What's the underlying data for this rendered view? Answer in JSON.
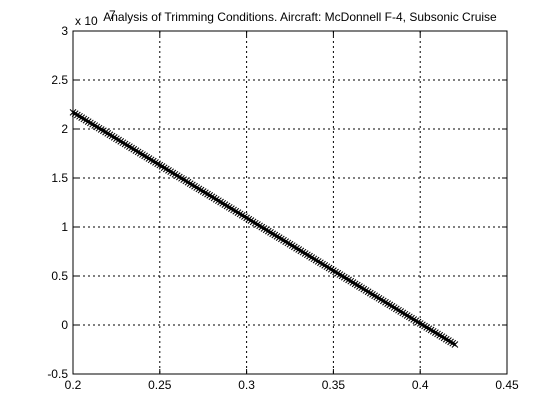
{
  "chart_data": {
    "type": "line",
    "title": "Analysis of Trimming Conditions. Aircraft: McDonnell F-4, Subsonic Cruise",
    "xlabel": "",
    "ylabel": "",
    "y_multiplier_label": "x 10",
    "y_multiplier_exponent": "7",
    "xlim": [
      0.2,
      0.45
    ],
    "ylim": [
      -0.5,
      3
    ],
    "x_ticks": [
      "0.2",
      "0.25",
      "0.3",
      "0.35",
      "0.4",
      "0.45"
    ],
    "y_ticks": [
      "-0.5",
      "0",
      "0.5",
      "1",
      "1.5",
      "2",
      "2.5",
      "3"
    ],
    "grid": true,
    "series": [
      {
        "x": [
          0.2,
          0.21,
          0.22,
          0.23,
          0.24,
          0.25,
          0.26,
          0.27,
          0.28,
          0.29,
          0.3,
          0.31,
          0.32,
          0.33,
          0.34,
          0.35,
          0.36,
          0.37,
          0.38,
          0.39,
          0.4,
          0.41,
          0.42
        ],
        "y": [
          2.17,
          2.062,
          1.955,
          1.847,
          1.739,
          1.632,
          1.524,
          1.416,
          1.309,
          1.201,
          1.093,
          0.985,
          0.878,
          0.77,
          0.662,
          0.555,
          0.447,
          0.339,
          0.232,
          0.124,
          0.016,
          -0.091,
          -0.199
        ],
        "color": "#000000",
        "marker": "x"
      }
    ]
  }
}
